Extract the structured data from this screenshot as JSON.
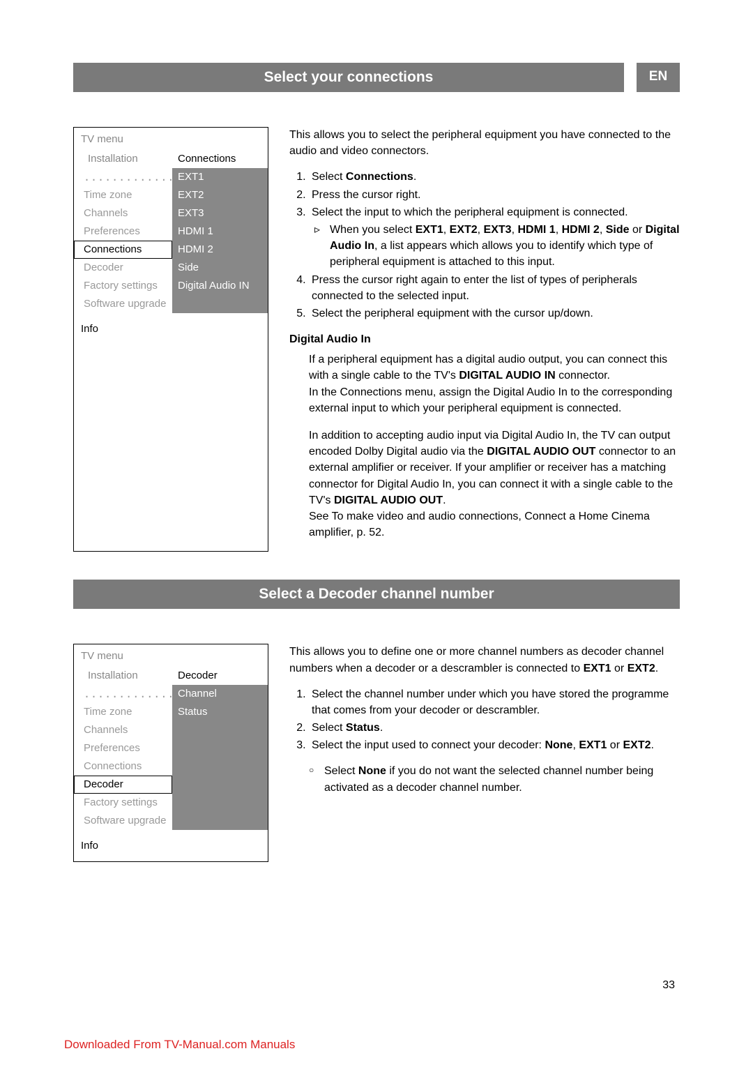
{
  "page_number": "33",
  "footer": "Downloaded From TV-Manual.com Manuals",
  "lang_badge": "EN",
  "colors": {
    "bar_bg": "#7a7a7a",
    "muted": "#888888",
    "link": "#d22222"
  },
  "section1": {
    "heading": "Select your connections",
    "menu": {
      "title": "TV menu",
      "left_header": "Installation",
      "right_header": "Connections",
      "info": "Info",
      "dotted": "..............",
      "left_items": [
        "Time zone",
        "Channels",
        "Preferences",
        "Connections",
        "Decoder",
        "Factory settings",
        "Software upgrade"
      ],
      "left_selected_index": 3,
      "right_items": [
        "EXT1",
        "EXT2",
        "EXT3",
        "HDMI 1",
        "HDMI 2",
        "Side",
        "Digital Audio IN"
      ]
    },
    "intro": "This allows you to select the peripheral equipment you have connected to the audio and video connectors.",
    "steps": {
      "s1": {
        "pre": "Select ",
        "b1": "Connections",
        "post": "."
      },
      "s2": "Press the cursor right.",
      "s3": "Select the input to which the peripheral equipment is connected.",
      "s3sub": {
        "pre": "When you select ",
        "b1": "EXT1",
        "c1": ", ",
        "b2": "EXT2",
        "c2": ", ",
        "b3": "EXT3",
        "c3": ", ",
        "b4": "HDMI 1",
        "c4": ", ",
        "b5": "HDMI 2",
        "c5": ", ",
        "b6": "Side",
        "c6": " or ",
        "b7": "Digital Audio In",
        "post": ", a list appears which allows you to identify which type of peripheral equipment is attached to this input."
      },
      "s4": "Press the cursor right again to enter the list of types of peripherals connected to the selected input.",
      "s5": "Select the peripheral equipment with the cursor up/down."
    },
    "digital_audio": {
      "title": "Digital Audio In",
      "p1": {
        "pre": "If a peripheral equipment has a digital audio output, you can connect this with a single cable to the TV's ",
        "b1": "DIGITAL AUDIO IN",
        "post": " connector."
      },
      "p2": "In the Connections menu, assign the Digital Audio In to the corresponding external input to which your peripheral equipment is connected.",
      "p3": {
        "pre": "In addition to accepting audio input via Digital Audio In, the TV can output encoded Dolby Digital audio via the ",
        "b1": "DIGITAL AUDIO OUT",
        "mid": " connector to an external amplifier or receiver. If your amplifier or receiver has a matching connector for Digital Audio In, you can connect it with a single cable to the TV's ",
        "b2": "DIGITAL AUDIO OUT",
        "post": "."
      },
      "p4": "See To make video and audio connections, Connect a Home Cinema amplifier, p. 52."
    }
  },
  "section2": {
    "heading": "Select a Decoder channel number",
    "menu": {
      "title": "TV menu",
      "left_header": "Installation",
      "right_header": "Decoder",
      "info": "Info",
      "dotted": "..............",
      "left_items": [
        "Time zone",
        "Channels",
        "Preferences",
        "Connections",
        "Decoder",
        "Factory settings",
        "Software upgrade"
      ],
      "left_selected_index": 4,
      "right_items": [
        "Channel",
        "Status"
      ]
    },
    "intro": {
      "pre": "This allows you to define one or more channel numbers as decoder channel numbers when a decoder or a descrambler is connected to ",
      "b1": "EXT1",
      "mid": " or ",
      "b2": "EXT2",
      "post": "."
    },
    "steps": {
      "s1": "Select the channel number under which you have stored the programme that comes from your decoder or descrambler.",
      "s2": {
        "pre": "Select ",
        "b1": "Status",
        "post": "."
      },
      "s3": {
        "pre": "Select the input used to connect your decoder: ",
        "b1": "None",
        "c1": ", ",
        "b2": "EXT1",
        "mid": " or ",
        "b3": "EXT2",
        "post": "."
      },
      "s3sub": {
        "pre": "Select ",
        "b1": "None",
        "post": " if you do not want the selected channel number being activated as a decoder channel number."
      }
    }
  }
}
